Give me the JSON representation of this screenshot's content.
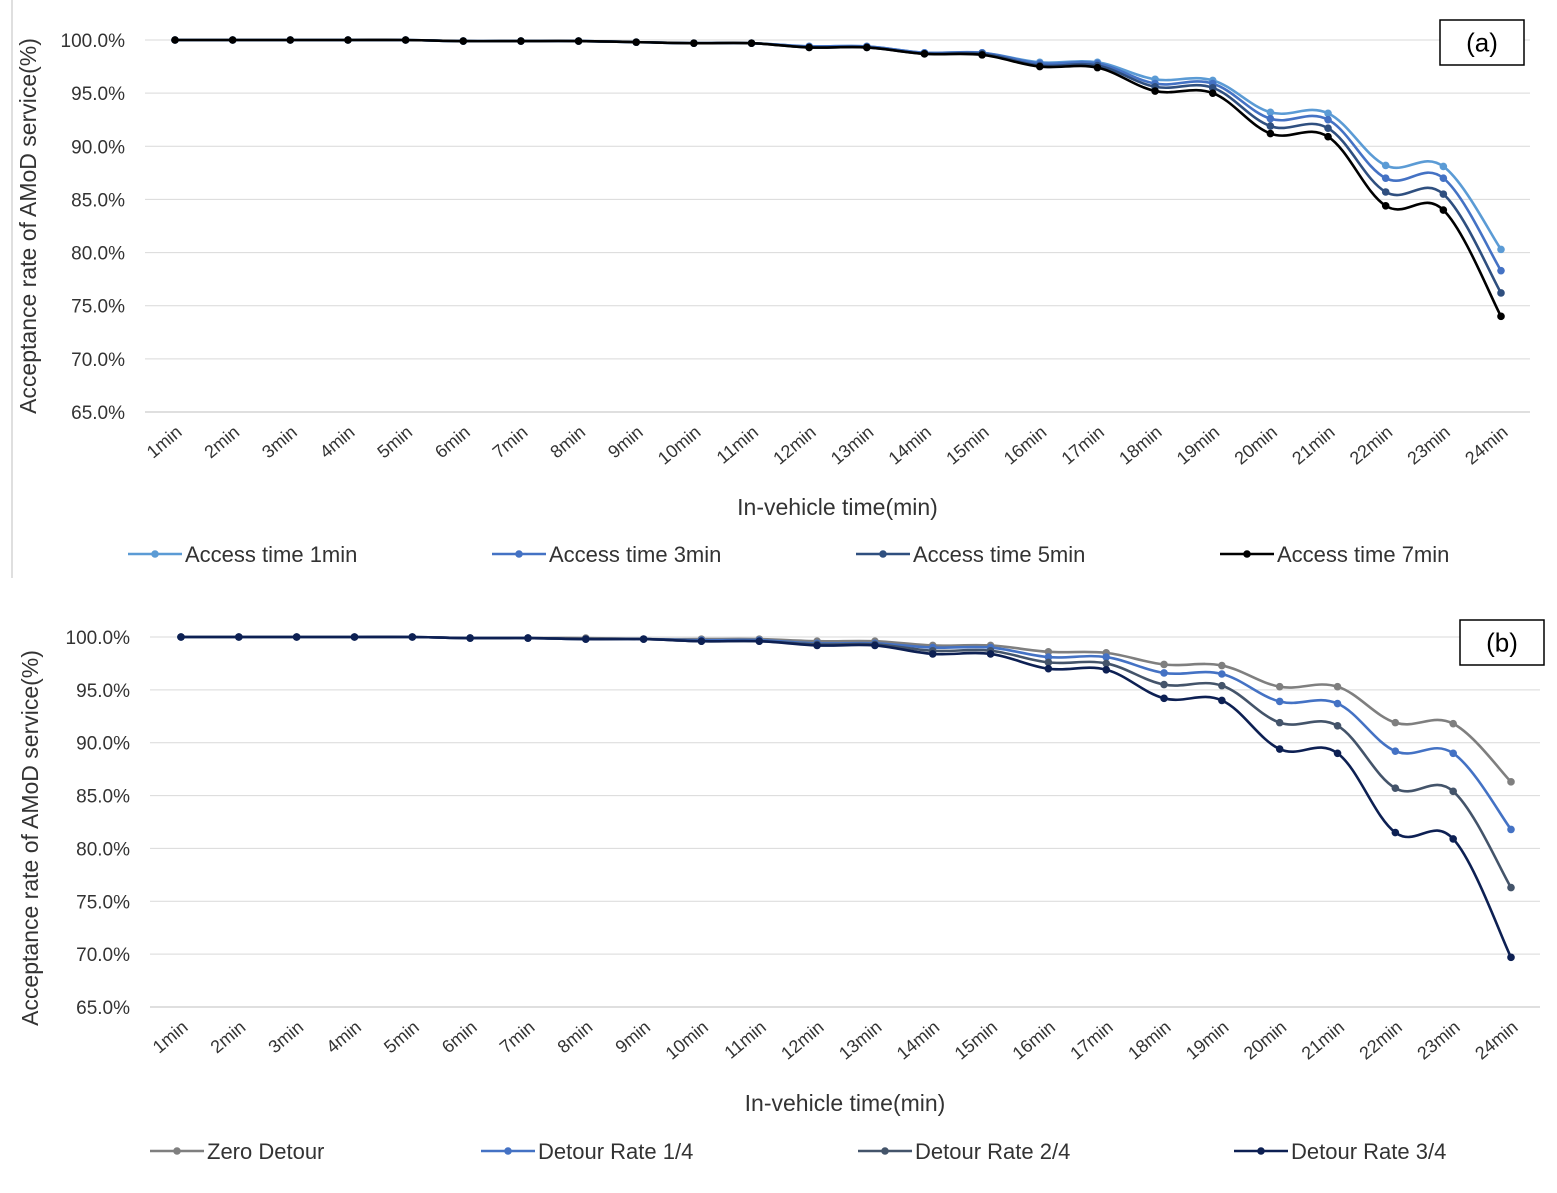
{
  "colors": {
    "grid": "#d9d9d9",
    "axis": "#bfbfbf",
    "frame": "#000000"
  },
  "chart_data": [
    {
      "type": "line",
      "panel_label": "(a)",
      "xlabel": "In-vehicle time(min)",
      "ylabel": "Acceptance rate of AMoD service(%)",
      "ylim": [
        65,
        100
      ],
      "yticks": [
        "100.0%",
        "95.0%",
        "90.0%",
        "85.0%",
        "80.0%",
        "75.0%",
        "70.0%",
        "65.0%"
      ],
      "grid": true,
      "legend_position": "bottom",
      "categories": [
        "1min",
        "2min",
        "3min",
        "4min",
        "5min",
        "6min",
        "7min",
        "8min",
        "9min",
        "10min",
        "11min",
        "12min",
        "13min",
        "14min",
        "15min",
        "16min",
        "17min",
        "18min",
        "19min",
        "20min",
        "21min",
        "22min",
        "23min",
        "24min"
      ],
      "series": [
        {
          "name": "Access time 1min",
          "color": "#5b9bd5",
          "values": [
            100.0,
            100.0,
            100.0,
            100.0,
            100.0,
            99.9,
            99.9,
            99.9,
            99.8,
            99.7,
            99.7,
            99.4,
            99.4,
            98.8,
            98.8,
            97.9,
            97.9,
            96.3,
            96.2,
            93.2,
            93.1,
            88.2,
            88.1,
            80.3
          ]
        },
        {
          "name": "Access time 3min",
          "color": "#4472c4",
          "values": [
            100.0,
            100.0,
            100.0,
            100.0,
            100.0,
            99.9,
            99.9,
            99.9,
            99.8,
            99.7,
            99.7,
            99.4,
            99.4,
            98.8,
            98.8,
            97.8,
            97.8,
            95.9,
            95.9,
            92.6,
            92.5,
            87.0,
            87.0,
            78.3
          ]
        },
        {
          "name": "Access time 5min",
          "color": "#2f4f7f",
          "values": [
            100.0,
            100.0,
            100.0,
            100.0,
            100.0,
            99.9,
            99.9,
            99.9,
            99.8,
            99.7,
            99.7,
            99.3,
            99.3,
            98.7,
            98.7,
            97.6,
            97.6,
            95.6,
            95.5,
            91.9,
            91.7,
            85.7,
            85.5,
            76.2
          ]
        },
        {
          "name": "Access time 7min",
          "color": "#000000",
          "values": [
            100.0,
            100.0,
            100.0,
            100.0,
            100.0,
            99.9,
            99.9,
            99.9,
            99.8,
            99.7,
            99.7,
            99.3,
            99.3,
            98.7,
            98.6,
            97.5,
            97.4,
            95.2,
            95.0,
            91.2,
            90.9,
            84.4,
            84.0,
            74.0
          ]
        }
      ]
    },
    {
      "type": "line",
      "panel_label": "(b)",
      "xlabel": "In-vehicle time(min)",
      "ylabel": "Acceptance rate of AMoD service(%)",
      "ylim": [
        65,
        100
      ],
      "yticks": [
        "100.0%",
        "95.0%",
        "90.0%",
        "85.0%",
        "80.0%",
        "75.0%",
        "70.0%",
        "65.0%"
      ],
      "grid": true,
      "legend_position": "bottom",
      "categories": [
        "1min",
        "2min",
        "3min",
        "4min",
        "5min",
        "6min",
        "7min",
        "8min",
        "9min",
        "10min",
        "11min",
        "12min",
        "13min",
        "14min",
        "15min",
        "16min",
        "17min",
        "18min",
        "19min",
        "20min",
        "21min",
        "22min",
        "23min",
        "24min"
      ],
      "series": [
        {
          "name": "Zero Detour",
          "color": "#7f7f7f",
          "values": [
            100.0,
            100.0,
            100.0,
            100.0,
            100.0,
            99.9,
            99.9,
            99.9,
            99.8,
            99.8,
            99.8,
            99.6,
            99.6,
            99.2,
            99.2,
            98.6,
            98.5,
            97.4,
            97.3,
            95.3,
            95.3,
            91.9,
            91.8,
            86.3
          ]
        },
        {
          "name": "Detour Rate 1/4",
          "color": "#4472c4",
          "values": [
            100.0,
            100.0,
            100.0,
            100.0,
            100.0,
            99.9,
            99.9,
            99.8,
            99.8,
            99.7,
            99.7,
            99.4,
            99.4,
            99.0,
            99.0,
            98.1,
            98.1,
            96.6,
            96.5,
            93.9,
            93.7,
            89.2,
            89.0,
            81.8
          ]
        },
        {
          "name": "Detour Rate 2/4",
          "color": "#44546a",
          "values": [
            100.0,
            100.0,
            100.0,
            100.0,
            100.0,
            99.9,
            99.9,
            99.8,
            99.8,
            99.6,
            99.6,
            99.3,
            99.3,
            98.7,
            98.7,
            97.6,
            97.5,
            95.5,
            95.4,
            91.9,
            91.6,
            85.7,
            85.4,
            76.3
          ]
        },
        {
          "name": "Detour Rate 3/4",
          "color": "#0d2053",
          "values": [
            100.0,
            100.0,
            100.0,
            100.0,
            100.0,
            99.9,
            99.9,
            99.8,
            99.8,
            99.6,
            99.6,
            99.2,
            99.2,
            98.4,
            98.4,
            97.0,
            96.9,
            94.2,
            94.0,
            89.4,
            89.0,
            81.5,
            80.9,
            69.7
          ]
        }
      ]
    }
  ]
}
